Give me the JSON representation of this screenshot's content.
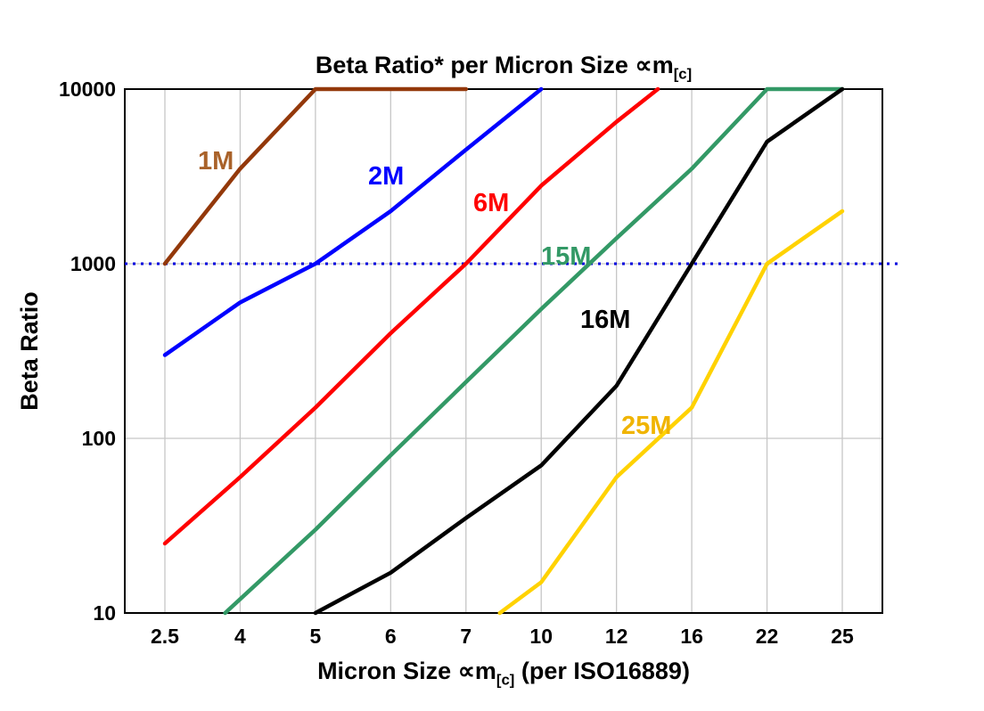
{
  "title": {
    "text": "Beta Ratio* per Micron Size ∝m",
    "sub": "[c]"
  },
  "xlabel": {
    "prefix": "Micron Size ∝m",
    "sub": "[c]",
    "suffix": " (per ISO16889)"
  },
  "ylabel": "Beta Ratio",
  "chart_data": {
    "type": "line",
    "title": "Beta Ratio* per Micron Size ∝m[c]",
    "xlabel": "Micron Size ∝m[c] (per ISO16889)",
    "ylabel": "Beta Ratio",
    "x_categories": [
      "2.5",
      "4",
      "5",
      "6",
      "7",
      "10",
      "12",
      "16",
      "22",
      "25"
    ],
    "y_ticks": [
      10,
      100,
      1000,
      10000
    ],
    "ylim": [
      10,
      10000
    ],
    "y_scale": "log",
    "grid": "on",
    "grid_color": "#c6c6c6",
    "reference_line": {
      "y": 1000,
      "style": "dotted",
      "color": "#0000dd"
    },
    "series": [
      {
        "name": "1M",
        "color": "#93380a",
        "label_color": "#a9622a",
        "label_pos": [
          222,
          190
        ],
        "points": [
          [
            0,
            1000
          ],
          [
            1,
            3500
          ],
          [
            2,
            10000
          ],
          [
            4,
            10000
          ]
        ]
      },
      {
        "name": "2M",
        "color": "#0000ff",
        "label_color": "#0000ff",
        "label_pos": [
          413,
          207
        ],
        "points": [
          [
            0,
            300
          ],
          [
            1,
            600
          ],
          [
            2,
            1000
          ],
          [
            3,
            2000
          ],
          [
            4,
            4500
          ],
          [
            5,
            10000
          ]
        ]
      },
      {
        "name": "6M",
        "color": "#ff0000",
        "label_color": "#ff0000",
        "label_pos": [
          531,
          237
        ],
        "points": [
          [
            0,
            25
          ],
          [
            1,
            60
          ],
          [
            2,
            150
          ],
          [
            3,
            400
          ],
          [
            4,
            1000
          ],
          [
            5,
            2800
          ],
          [
            6,
            6500
          ],
          [
            6.55,
            10000
          ]
        ]
      },
      {
        "name": "15M",
        "color": "#339966",
        "label_color": "#339966",
        "label_pos": [
          607,
          297
        ],
        "points": [
          [
            0.8,
            10
          ],
          [
            2,
            30
          ],
          [
            3,
            80
          ],
          [
            4,
            210
          ],
          [
            5,
            550
          ],
          [
            6,
            1400
          ],
          [
            7,
            3500
          ],
          [
            8,
            10000
          ],
          [
            9,
            10000
          ]
        ]
      },
      {
        "name": "16M",
        "color": "#000000",
        "label_color": "#000000",
        "label_pos": [
          651,
          368
        ],
        "points": [
          [
            2,
            10
          ],
          [
            3,
            17
          ],
          [
            4,
            35
          ],
          [
            5,
            70
          ],
          [
            6,
            200
          ],
          [
            7,
            1000
          ],
          [
            8,
            5000
          ],
          [
            9,
            10000
          ]
        ]
      },
      {
        "name": "25M",
        "color": "#ffd200",
        "label_color": "#f0b400",
        "label_pos": [
          697,
          487
        ],
        "points": [
          [
            4.45,
            10
          ],
          [
            5,
            15
          ],
          [
            6,
            60
          ],
          [
            7,
            150
          ],
          [
            8,
            1000
          ],
          [
            9,
            2000
          ]
        ]
      }
    ]
  }
}
